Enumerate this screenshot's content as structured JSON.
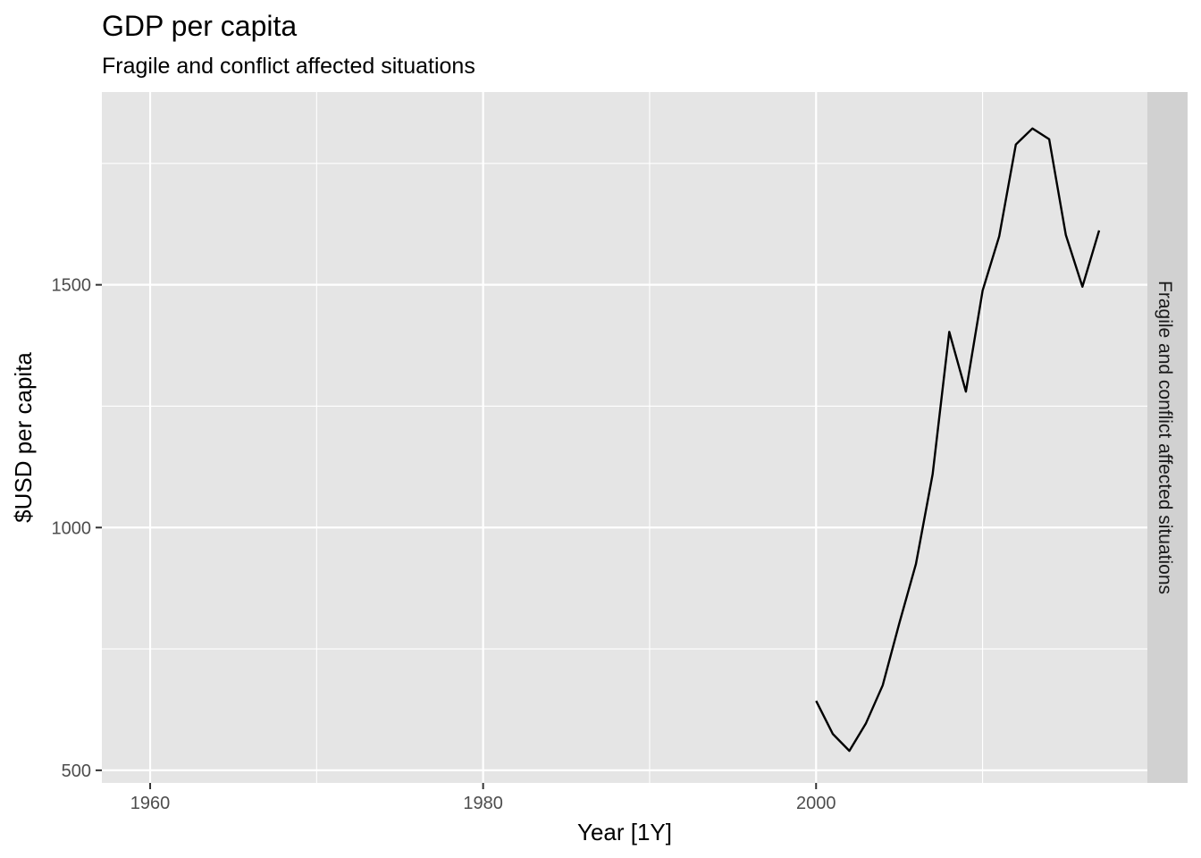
{
  "chart_data": {
    "type": "line",
    "title": "GDP per capita",
    "subtitle": "Fragile and conflict affected situations",
    "xlabel": "Year [1Y]",
    "ylabel": "$USD per capita",
    "facet_label": "Fragile and conflict affected situations",
    "xlim": [
      1957.1,
      2019.9
    ],
    "ylim": [
      474,
      1897
    ],
    "x_ticks": [
      1960,
      1980,
      2000
    ],
    "x_tick_labels": [
      "1960",
      "1980",
      "2000"
    ],
    "x_minor_ticks": [
      1970,
      1990,
      2010
    ],
    "y_ticks": [
      500,
      1000,
      1500
    ],
    "y_tick_labels": [
      "500",
      "1000",
      "1500"
    ],
    "y_minor_ticks": [
      750,
      1250,
      1750
    ],
    "grid": true,
    "line_color": "#000000",
    "series": [
      {
        "x": [
          2000,
          2001,
          2002,
          2003,
          2004,
          2005,
          2006,
          2007,
          2008,
          2009,
          2010,
          2011,
          2012,
          2013,
          2014,
          2015,
          2016,
          2017
        ],
        "values": [
          643,
          575,
          540,
          597,
          675,
          803,
          925,
          1110,
          1403,
          1280,
          1488,
          1600,
          1789,
          1822,
          1800,
          1603,
          1496,
          1612
        ]
      }
    ]
  }
}
